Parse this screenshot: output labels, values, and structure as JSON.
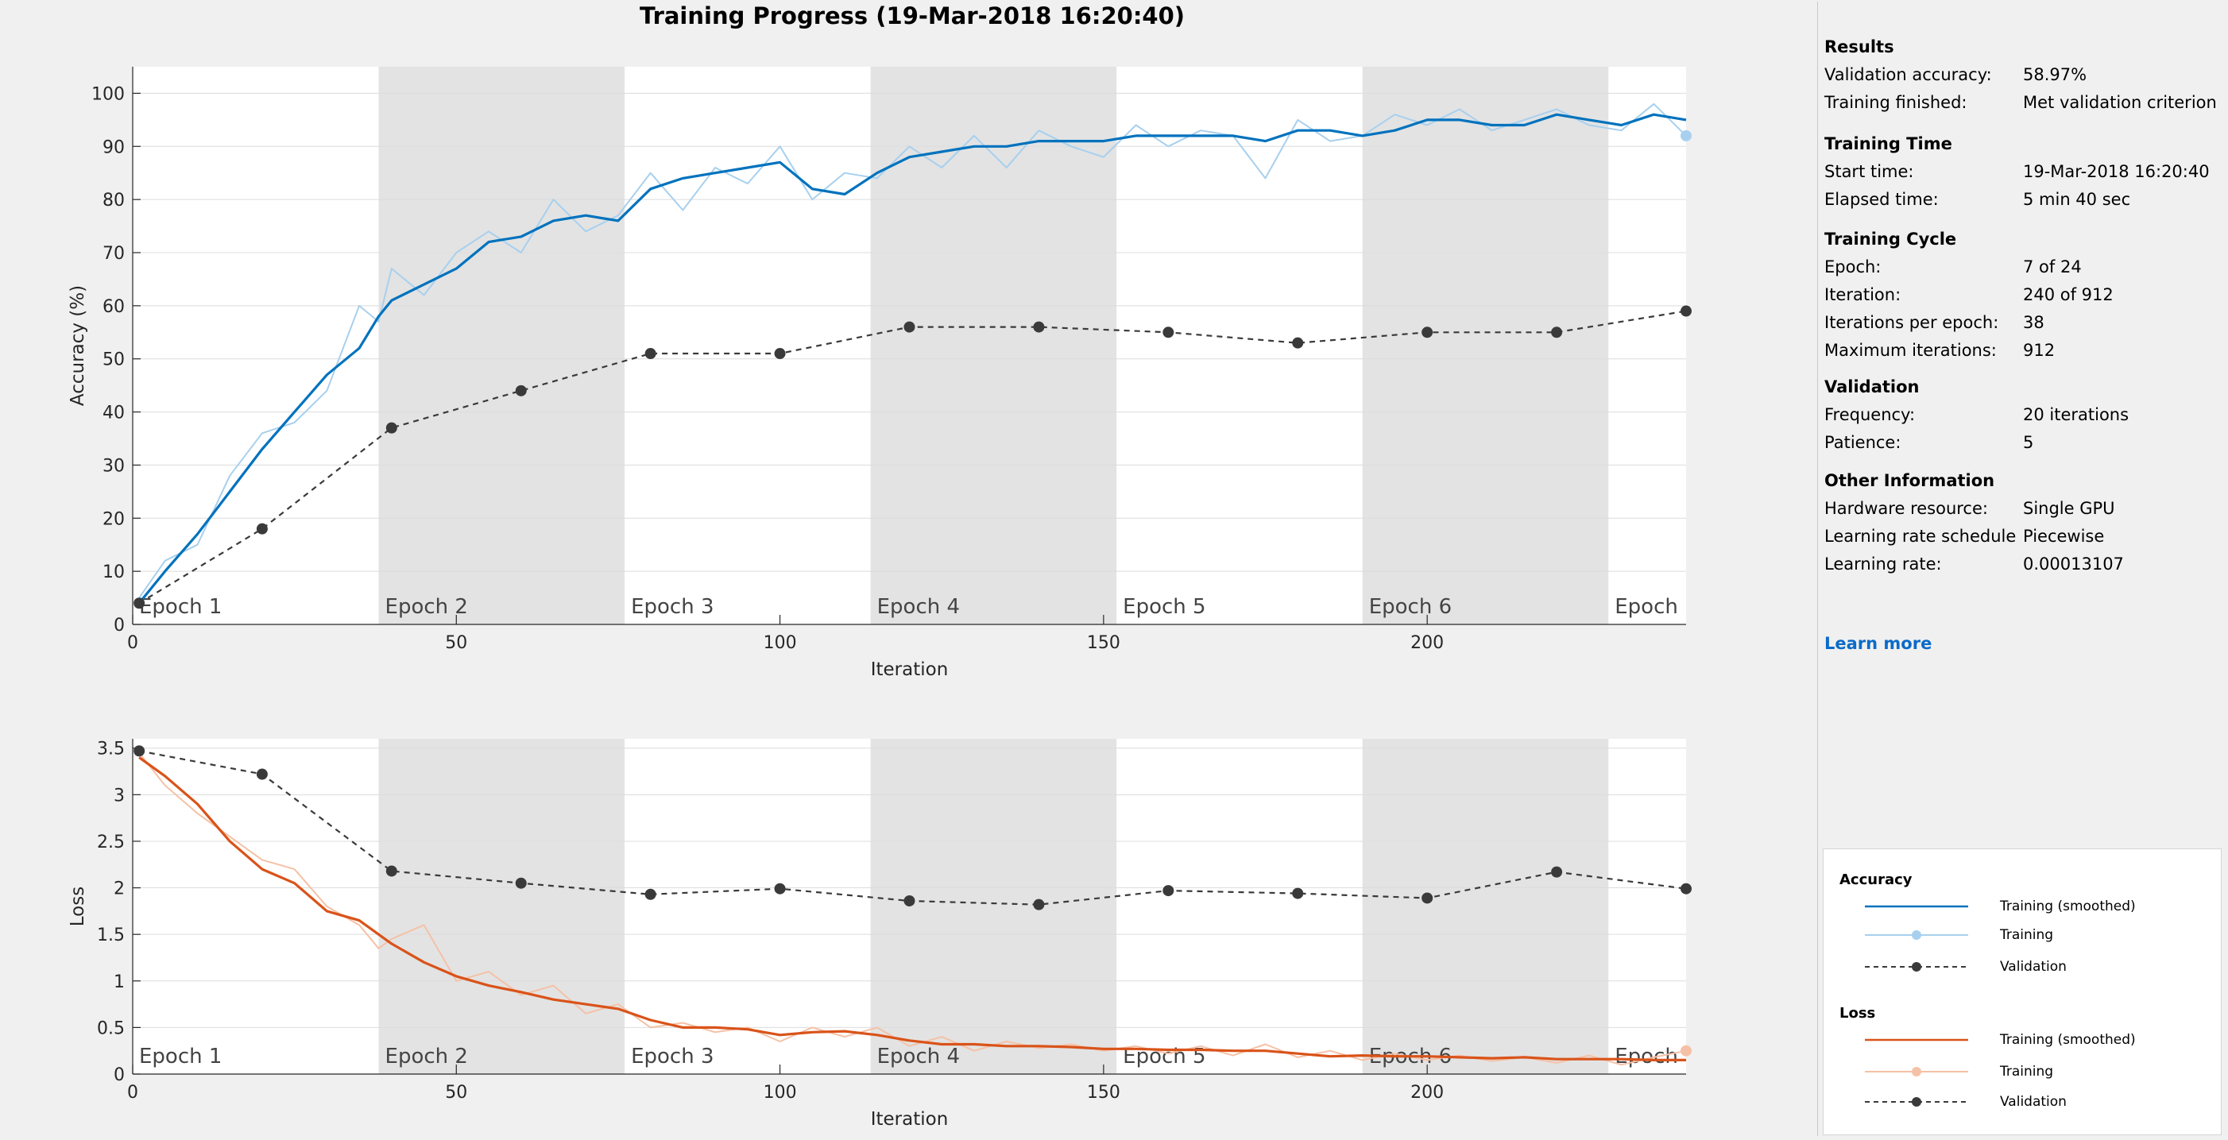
{
  "title": "Training Progress (19-Mar-2018 16:20:40)",
  "colors": {
    "train_acc_smooth": "#0072bd",
    "train_acc_raw": "#a8d0ee",
    "train_loss_smooth": "#d95319",
    "train_loss_raw": "#f5c1a6",
    "validation": "#3a3a3a",
    "epoch_shade": "#e3e3e3",
    "link": "#0b6bc8"
  },
  "epochs": [
    "Epoch 1",
    "Epoch 2",
    "Epoch 3",
    "Epoch 4",
    "Epoch 5",
    "Epoch 6",
    "Epoch"
  ],
  "info": {
    "results": {
      "title": "Results",
      "rows": [
        {
          "label": "Validation accuracy:",
          "value": "58.97%"
        },
        {
          "label": "Training finished:",
          "value": "Met validation criterion"
        }
      ]
    },
    "training_time": {
      "title": "Training Time",
      "rows": [
        {
          "label": "Start time:",
          "value": "19-Mar-2018 16:20:40"
        },
        {
          "label": "Elapsed time:",
          "value": "5 min 40 sec"
        }
      ]
    },
    "training_cycle": {
      "title": "Training Cycle",
      "rows": [
        {
          "label": "Epoch:",
          "value": "7 of 24"
        },
        {
          "label": "Iteration:",
          "value": "240 of 912"
        },
        {
          "label": "Iterations per epoch:",
          "value": "38"
        },
        {
          "label": "Maximum iterations:",
          "value": "912"
        }
      ]
    },
    "validation": {
      "title": "Validation",
      "rows": [
        {
          "label": "Frequency:",
          "value": "20 iterations"
        },
        {
          "label": "Patience:",
          "value": "5"
        }
      ]
    },
    "other": {
      "title": "Other Information",
      "rows": [
        {
          "label": "Hardware resource:",
          "value": "Single GPU"
        },
        {
          "label": "Learning rate schedule",
          "value": "Piecewise"
        },
        {
          "label": "Learning rate:",
          "value": "0.00013107"
        }
      ]
    },
    "learn_more": "Learn more"
  },
  "legend": {
    "accuracy": {
      "title": "Accuracy",
      "smoothed": "Training (smoothed)",
      "raw": "Training",
      "validation": "Validation"
    },
    "loss": {
      "title": "Loss",
      "smoothed": "Training (smoothed)",
      "raw": "Training",
      "validation": "Validation"
    }
  },
  "chart_data": [
    {
      "type": "line",
      "title": "Training Progress (19-Mar-2018 16:20:40)",
      "xlabel": "Iteration",
      "ylabel": "Accuracy (%)",
      "xlim": [
        0,
        240
      ],
      "ylim": [
        0,
        105
      ],
      "xticks": [
        0,
        50,
        100,
        150,
        200
      ],
      "yticks": [
        0,
        10,
        20,
        30,
        40,
        50,
        60,
        70,
        80,
        90,
        100
      ],
      "grid": true,
      "epoch_iterations": 38,
      "series": [
        {
          "name": "Training (smoothed)",
          "x": [
            1,
            5,
            10,
            15,
            20,
            25,
            30,
            35,
            38,
            40,
            45,
            50,
            55,
            60,
            65,
            70,
            75,
            80,
            85,
            90,
            95,
            100,
            105,
            110,
            115,
            120,
            125,
            130,
            135,
            140,
            145,
            150,
            155,
            160,
            165,
            170,
            175,
            180,
            185,
            190,
            195,
            200,
            205,
            210,
            215,
            220,
            225,
            230,
            235,
            240
          ],
          "y": [
            4,
            10,
            17,
            25,
            33,
            40,
            47,
            52,
            58,
            61,
            64,
            67,
            72,
            73,
            76,
            77,
            76,
            82,
            84,
            85,
            86,
            87,
            82,
            81,
            85,
            88,
            89,
            90,
            90,
            91,
            91,
            91,
            92,
            92,
            92,
            92,
            91,
            93,
            93,
            92,
            93,
            95,
            95,
            94,
            94,
            96,
            95,
            94,
            96,
            95
          ]
        },
        {
          "name": "Training",
          "x": [
            1,
            5,
            10,
            15,
            20,
            25,
            30,
            35,
            38,
            40,
            45,
            50,
            55,
            60,
            65,
            70,
            75,
            80,
            85,
            90,
            95,
            100,
            105,
            110,
            115,
            120,
            125,
            130,
            135,
            140,
            145,
            150,
            155,
            160,
            165,
            170,
            175,
            180,
            185,
            190,
            195,
            200,
            205,
            210,
            215,
            220,
            225,
            230,
            235,
            240
          ],
          "y": [
            5,
            12,
            15,
            28,
            36,
            38,
            44,
            60,
            57,
            67,
            62,
            70,
            74,
            70,
            80,
            74,
            77,
            85,
            78,
            86,
            83,
            90,
            80,
            85,
            84,
            90,
            86,
            92,
            86,
            93,
            90,
            88,
            94,
            90,
            93,
            92,
            84,
            95,
            91,
            92,
            96,
            94,
            97,
            93,
            95,
            97,
            94,
            93,
            98,
            92
          ]
        },
        {
          "name": "Validation",
          "x": [
            1,
            20,
            40,
            60,
            80,
            100,
            120,
            140,
            160,
            180,
            200,
            220,
            240
          ],
          "y": [
            4,
            18,
            37,
            44,
            51,
            51,
            56,
            56,
            55,
            53,
            55,
            55,
            59
          ]
        }
      ]
    },
    {
      "type": "line",
      "xlabel": "Iteration",
      "ylabel": "Loss",
      "xlim": [
        0,
        240
      ],
      "ylim": [
        0,
        3.6
      ],
      "xticks": [
        0,
        50,
        100,
        150,
        200
      ],
      "yticks": [
        0,
        0.5,
        1,
        1.5,
        2,
        2.5,
        3,
        3.5
      ],
      "grid": true,
      "epoch_iterations": 38,
      "series": [
        {
          "name": "Training (smoothed)",
          "x": [
            1,
            5,
            10,
            15,
            20,
            25,
            30,
            35,
            38,
            40,
            45,
            50,
            55,
            60,
            65,
            70,
            75,
            80,
            85,
            90,
            95,
            100,
            105,
            110,
            115,
            120,
            125,
            130,
            135,
            140,
            145,
            150,
            155,
            160,
            165,
            170,
            175,
            180,
            185,
            190,
            195,
            200,
            205,
            210,
            215,
            220,
            225,
            230,
            235,
            240
          ],
          "y": [
            3.4,
            3.2,
            2.9,
            2.5,
            2.2,
            2.05,
            1.75,
            1.65,
            1.5,
            1.4,
            1.2,
            1.05,
            0.95,
            0.88,
            0.8,
            0.75,
            0.7,
            0.58,
            0.5,
            0.5,
            0.48,
            0.42,
            0.45,
            0.46,
            0.42,
            0.36,
            0.32,
            0.32,
            0.3,
            0.3,
            0.29,
            0.27,
            0.27,
            0.26,
            0.26,
            0.25,
            0.25,
            0.22,
            0.19,
            0.2,
            0.19,
            0.19,
            0.18,
            0.17,
            0.18,
            0.16,
            0.16,
            0.16,
            0.15,
            0.15
          ]
        },
        {
          "name": "Training",
          "x": [
            1,
            5,
            10,
            15,
            20,
            25,
            30,
            35,
            38,
            40,
            45,
            50,
            55,
            60,
            65,
            70,
            75,
            80,
            85,
            90,
            95,
            100,
            105,
            110,
            115,
            120,
            125,
            130,
            135,
            140,
            145,
            150,
            155,
            160,
            165,
            170,
            175,
            180,
            185,
            190,
            195,
            200,
            205,
            210,
            215,
            220,
            225,
            230,
            235,
            240
          ],
          "y": [
            3.45,
            3.1,
            2.8,
            2.55,
            2.3,
            2.2,
            1.8,
            1.6,
            1.35,
            1.45,
            1.6,
            1.0,
            1.1,
            0.85,
            0.95,
            0.65,
            0.75,
            0.5,
            0.55,
            0.45,
            0.5,
            0.35,
            0.5,
            0.4,
            0.5,
            0.3,
            0.4,
            0.25,
            0.35,
            0.28,
            0.32,
            0.25,
            0.3,
            0.22,
            0.3,
            0.2,
            0.32,
            0.18,
            0.25,
            0.15,
            0.22,
            0.15,
            0.2,
            0.14,
            0.18,
            0.12,
            0.2,
            0.1,
            0.18,
            0.25
          ]
        },
        {
          "name": "Validation",
          "x": [
            1,
            20,
            40,
            60,
            80,
            100,
            120,
            140,
            160,
            180,
            200,
            220,
            240
          ],
          "y": [
            3.47,
            3.22,
            2.18,
            2.05,
            1.93,
            1.99,
            1.86,
            1.82,
            1.97,
            1.94,
            1.89,
            2.17,
            1.99
          ]
        }
      ]
    }
  ]
}
